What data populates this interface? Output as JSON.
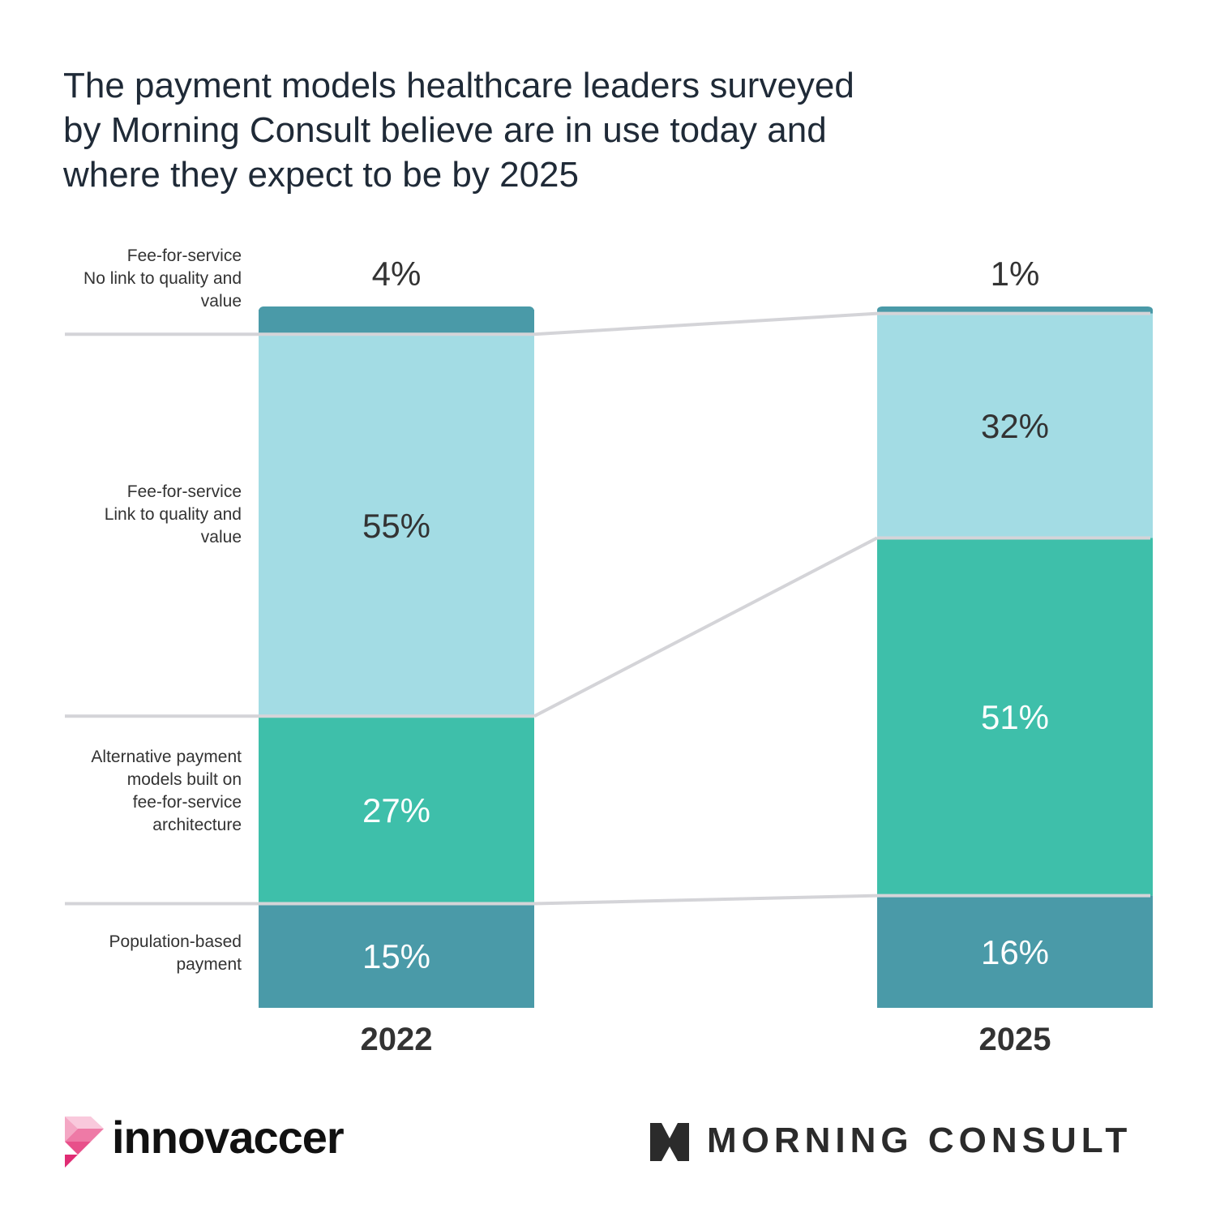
{
  "chart_data": {
    "type": "bar",
    "stacked": true,
    "title": "The payment models healthcare leaders surveyed by Morning Consult believe are in use today and where they expect to be by 2025",
    "categories": [
      "2022",
      "2025"
    ],
    "series": [
      {
        "name": "Population-based payment",
        "values": [
          15,
          16
        ],
        "color": "#4a9aa8",
        "label_color": "#ffffff"
      },
      {
        "name": "Alternative payment models built on fee-for-service architecture",
        "values": [
          27,
          51
        ],
        "color": "#3ebfaa",
        "label_color": "#ffffff"
      },
      {
        "name": "Fee-for-service Link to quality and value",
        "values": [
          55,
          32
        ],
        "color": "#a3dce4",
        "label_color": "#333333"
      },
      {
        "name": "Fee-for-service No link to quality and value",
        "values": [
          4,
          1
        ],
        "color": "#4a9aa8",
        "label_color": "#333333"
      }
    ],
    "value_suffix": "%",
    "legend_lines": [
      [
        "Population-based",
        "payment"
      ],
      [
        "Alternative payment",
        "models built on",
        "fee-for-service",
        "architecture"
      ],
      [
        "Fee-for-service",
        "Link to quality and",
        "value"
      ],
      [
        "Fee-for-service",
        "No link to quality and",
        "value"
      ]
    ],
    "legend_placement": "left"
  },
  "logos": {
    "left": "innovaccer",
    "right": "MORNING CONSULT"
  }
}
